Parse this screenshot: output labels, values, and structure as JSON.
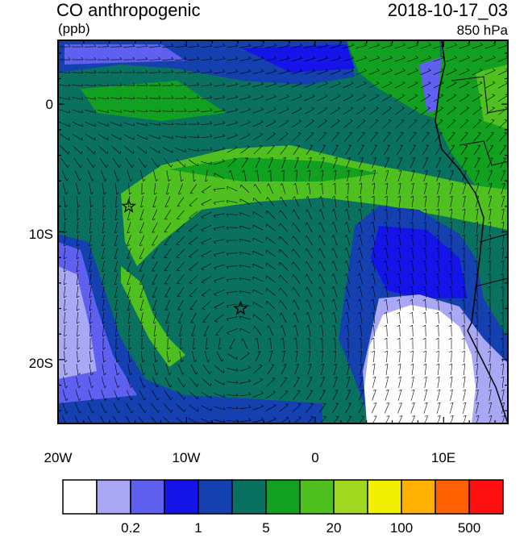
{
  "header": {
    "title": "CO anthropogenic",
    "units": "(ppb)",
    "datetime": "2018-10-17_03",
    "level": "850 hPa"
  },
  "map": {
    "lat_ticks": [
      "0",
      "10S",
      "20S"
    ],
    "lon_ticks": [
      "20W",
      "10W",
      "0",
      "10E"
    ],
    "markers": [
      {
        "name": "star",
        "lon": -14.5,
        "lat": -8.0
      },
      {
        "name": "star",
        "lon": -5.8,
        "lat": -16.0
      }
    ],
    "extent": {
      "lon": [
        -20,
        15
      ],
      "lat": [
        -25,
        5
      ]
    }
  },
  "colorbar": {
    "colors": [
      "#ffffff",
      "#a8a8f5",
      "#6060f0",
      "#1414e8",
      "#1440b0",
      "#0a7060",
      "#12a020",
      "#50c020",
      "#a0d820",
      "#f0f000",
      "#ffb000",
      "#ff6000",
      "#ff1010"
    ],
    "labels": [
      "0.2",
      "1",
      "5",
      "20",
      "100",
      "500"
    ]
  }
}
